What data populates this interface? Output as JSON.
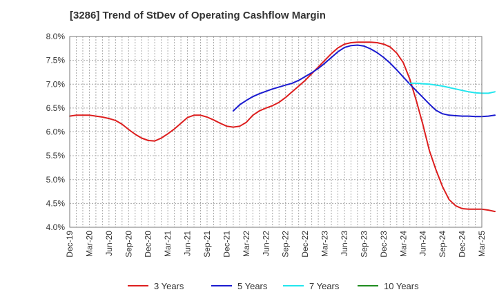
{
  "chart_data": {
    "type": "line",
    "title": "[3286]  Trend of StDev of Operating Cashflow Margin",
    "xlabel": "",
    "ylabel": "",
    "ylim": [
      4.0,
      8.0
    ],
    "y_ticks": [
      "8.0%",
      "7.5%",
      "7.0%",
      "6.5%",
      "6.0%",
      "5.5%",
      "5.0%",
      "4.5%",
      "4.0%"
    ],
    "x_ticks": [
      "Dec-19",
      "Mar-20",
      "Jun-20",
      "Sep-20",
      "Dec-20",
      "Mar-21",
      "Jun-21",
      "Sep-21",
      "Dec-21",
      "Mar-22",
      "Jun-22",
      "Sep-22",
      "Dec-22",
      "Mar-23",
      "Jun-23",
      "Sep-23",
      "Dec-23",
      "Mar-24",
      "Jun-24",
      "Sep-24",
      "Dec-24",
      "Mar-25"
    ],
    "grid": true,
    "legend_position": "bottom",
    "series": [
      {
        "name": "3 Years",
        "color": "#dd1e1e",
        "points": [
          [
            "2019-12",
            6.33
          ],
          [
            "2020-01",
            6.35
          ],
          [
            "2020-02",
            6.35
          ],
          [
            "2020-03",
            6.35
          ],
          [
            "2020-04",
            6.33
          ],
          [
            "2020-05",
            6.31
          ],
          [
            "2020-06",
            6.28
          ],
          [
            "2020-07",
            6.24
          ],
          [
            "2020-08",
            6.16
          ],
          [
            "2020-09",
            6.05
          ],
          [
            "2020-10",
            5.95
          ],
          [
            "2020-11",
            5.87
          ],
          [
            "2020-12",
            5.82
          ],
          [
            "2021-01",
            5.81
          ],
          [
            "2021-02",
            5.87
          ],
          [
            "2021-03",
            5.96
          ],
          [
            "2021-04",
            6.06
          ],
          [
            "2021-05",
            6.18
          ],
          [
            "2021-06",
            6.3
          ],
          [
            "2021-07",
            6.35
          ],
          [
            "2021-08",
            6.35
          ],
          [
            "2021-09",
            6.31
          ],
          [
            "2021-10",
            6.25
          ],
          [
            "2021-11",
            6.18
          ],
          [
            "2021-12",
            6.12
          ],
          [
            "2022-01",
            6.1
          ],
          [
            "2022-02",
            6.12
          ],
          [
            "2022-03",
            6.2
          ],
          [
            "2022-04",
            6.35
          ],
          [
            "2022-05",
            6.44
          ],
          [
            "2022-06",
            6.5
          ],
          [
            "2022-07",
            6.55
          ],
          [
            "2022-08",
            6.62
          ],
          [
            "2022-09",
            6.72
          ],
          [
            "2022-10",
            6.84
          ],
          [
            "2022-11",
            6.96
          ],
          [
            "2022-12",
            7.08
          ],
          [
            "2023-01",
            7.22
          ],
          [
            "2023-02",
            7.36
          ],
          [
            "2023-03",
            7.5
          ],
          [
            "2023-04",
            7.64
          ],
          [
            "2023-05",
            7.76
          ],
          [
            "2023-06",
            7.84
          ],
          [
            "2023-07",
            7.87
          ],
          [
            "2023-08",
            7.88
          ],
          [
            "2023-09",
            7.88
          ],
          [
            "2023-10",
            7.88
          ],
          [
            "2023-11",
            7.87
          ],
          [
            "2023-12",
            7.84
          ],
          [
            "2024-01",
            7.78
          ],
          [
            "2024-02",
            7.65
          ],
          [
            "2024-03",
            7.45
          ],
          [
            "2024-04",
            7.1
          ],
          [
            "2024-05",
            6.65
          ],
          [
            "2024-06",
            6.15
          ],
          [
            "2024-07",
            5.6
          ],
          [
            "2024-08",
            5.2
          ],
          [
            "2024-09",
            4.85
          ],
          [
            "2024-10",
            4.58
          ],
          [
            "2024-11",
            4.45
          ],
          [
            "2024-12",
            4.39
          ],
          [
            "2025-01",
            4.38
          ],
          [
            "2025-02",
            4.38
          ],
          [
            "2025-03",
            4.38
          ],
          [
            "2025-04",
            4.36
          ],
          [
            "2025-05",
            4.33
          ]
        ]
      },
      {
        "name": "5 Years",
        "color": "#1a1ad0",
        "points": [
          [
            "2022-01",
            6.44
          ],
          [
            "2022-02",
            6.57
          ],
          [
            "2022-03",
            6.66
          ],
          [
            "2022-04",
            6.74
          ],
          [
            "2022-05",
            6.8
          ],
          [
            "2022-06",
            6.85
          ],
          [
            "2022-07",
            6.9
          ],
          [
            "2022-08",
            6.94
          ],
          [
            "2022-09",
            6.98
          ],
          [
            "2022-10",
            7.02
          ],
          [
            "2022-11",
            7.08
          ],
          [
            "2022-12",
            7.16
          ],
          [
            "2023-01",
            7.24
          ],
          [
            "2023-02",
            7.33
          ],
          [
            "2023-03",
            7.44
          ],
          [
            "2023-04",
            7.56
          ],
          [
            "2023-05",
            7.68
          ],
          [
            "2023-06",
            7.77
          ],
          [
            "2023-07",
            7.81
          ],
          [
            "2023-08",
            7.82
          ],
          [
            "2023-09",
            7.8
          ],
          [
            "2023-10",
            7.74
          ],
          [
            "2023-11",
            7.66
          ],
          [
            "2023-12",
            7.56
          ],
          [
            "2024-01",
            7.44
          ],
          [
            "2024-02",
            7.3
          ],
          [
            "2024-03",
            7.15
          ],
          [
            "2024-04",
            7.0
          ],
          [
            "2024-05",
            6.86
          ],
          [
            "2024-06",
            6.72
          ],
          [
            "2024-07",
            6.58
          ],
          [
            "2024-08",
            6.45
          ],
          [
            "2024-09",
            6.38
          ],
          [
            "2024-10",
            6.35
          ],
          [
            "2024-11",
            6.34
          ],
          [
            "2024-12",
            6.33
          ],
          [
            "2025-01",
            6.33
          ],
          [
            "2025-02",
            6.32
          ],
          [
            "2025-03",
            6.32
          ],
          [
            "2025-04",
            6.33
          ],
          [
            "2025-05",
            6.35
          ]
        ]
      },
      {
        "name": "7 Years",
        "color": "#22e6ee",
        "points": [
          [
            "2024-04",
            7.02
          ],
          [
            "2024-05",
            7.02
          ],
          [
            "2024-06",
            7.01
          ],
          [
            "2024-07",
            7.0
          ],
          [
            "2024-08",
            6.98
          ],
          [
            "2024-09",
            6.96
          ],
          [
            "2024-10",
            6.93
          ],
          [
            "2024-11",
            6.9
          ],
          [
            "2024-12",
            6.87
          ],
          [
            "2025-01",
            6.84
          ],
          [
            "2025-02",
            6.82
          ],
          [
            "2025-03",
            6.81
          ],
          [
            "2025-04",
            6.81
          ],
          [
            "2025-05",
            6.84
          ]
        ]
      },
      {
        "name": "10 Years",
        "color": "#1e8c1e",
        "points": []
      }
    ]
  }
}
